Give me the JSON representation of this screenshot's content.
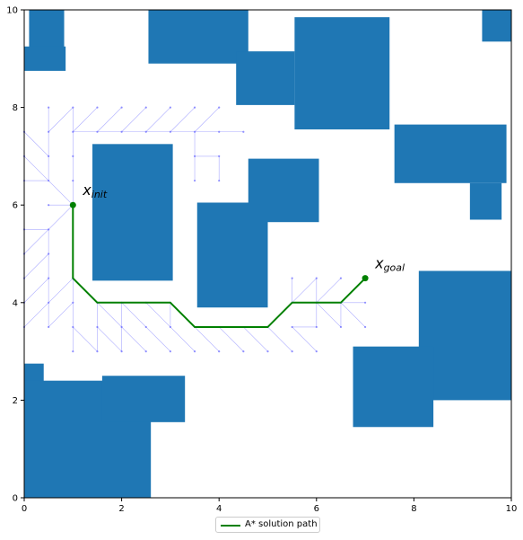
{
  "chart_data": {
    "type": "scatter",
    "xlim": [
      0,
      10
    ],
    "ylim": [
      0,
      10
    ],
    "x_ticks": [
      "0",
      "2",
      "4",
      "6",
      "8",
      "10"
    ],
    "y_ticks": [
      "0",
      "2",
      "4",
      "6",
      "8",
      "10"
    ],
    "grid": false,
    "legend_placement": "bottom-center",
    "colors": {
      "obstacle": "#1f77b4",
      "path": "#008000",
      "tree": "#6666ff"
    },
    "obstacles": [
      {
        "x0": 0.1,
        "y0": 9.2,
        "x1": 0.82,
        "y1": 10.0
      },
      {
        "x0": 0.0,
        "y0": 8.75,
        "x1": 0.85,
        "y1": 9.25
      },
      {
        "x0": 2.55,
        "y0": 8.9,
        "x1": 4.6,
        "y1": 10.0
      },
      {
        "x0": 4.35,
        "y0": 8.05,
        "x1": 5.55,
        "y1": 9.15
      },
      {
        "x0": 5.55,
        "y0": 7.55,
        "x1": 7.5,
        "y1": 9.85
      },
      {
        "x0": 7.6,
        "y0": 6.45,
        "x1": 9.9,
        "y1": 7.65
      },
      {
        "x0": 9.15,
        "y0": 5.7,
        "x1": 9.8,
        "y1": 6.45
      },
      {
        "x0": 9.4,
        "y0": 9.35,
        "x1": 10.0,
        "y1": 10.0
      },
      {
        "x0": 1.4,
        "y0": 4.45,
        "x1": 3.05,
        "y1": 7.25
      },
      {
        "x0": 4.6,
        "y0": 5.65,
        "x1": 6.05,
        "y1": 6.95
      },
      {
        "x0": 3.55,
        "y0": 3.9,
        "x1": 5.0,
        "y1": 6.05
      },
      {
        "x0": 8.1,
        "y0": 2.0,
        "x1": 10.0,
        "y1": 4.65
      },
      {
        "x0": 6.75,
        "y0": 1.45,
        "x1": 8.4,
        "y1": 3.1
      },
      {
        "x0": 0.0,
        "y0": 2.0,
        "x1": 0.4,
        "y1": 2.75
      },
      {
        "x0": 0.0,
        "y0": 0.0,
        "x1": 2.6,
        "y1": 2.4
      },
      {
        "x0": 1.6,
        "y0": 1.55,
        "x1": 3.3,
        "y1": 2.5
      }
    ],
    "tree_edges": [
      [
        1.0,
        6.0,
        0.5,
        5.5
      ],
      [
        1.0,
        6.0,
        0.5,
        6.0
      ],
      [
        1.0,
        6.0,
        0.5,
        6.5
      ],
      [
        1.0,
        6.0,
        1.0,
        6.5
      ],
      [
        0.5,
        5.5,
        0.0,
        5.0
      ],
      [
        0.5,
        5.5,
        0.0,
        5.5
      ],
      [
        0.5,
        5.5,
        0.5,
        5.0
      ],
      [
        0.5,
        6.5,
        0.0,
        7.0
      ],
      [
        0.5,
        6.5,
        0.0,
        6.5
      ],
      [
        0.5,
        6.5,
        0.5,
        7.0
      ],
      [
        0.5,
        5.0,
        0.0,
        4.5
      ],
      [
        0.5,
        5.0,
        0.5,
        4.5
      ],
      [
        0.5,
        4.5,
        0.0,
        4.0
      ],
      [
        0.5,
        4.5,
        0.5,
        4.0
      ],
      [
        0.5,
        4.0,
        0.0,
        3.5
      ],
      [
        0.5,
        4.0,
        0.5,
        3.5
      ],
      [
        0.5,
        7.0,
        0.0,
        7.5
      ],
      [
        0.5,
        7.0,
        0.5,
        7.5
      ],
      [
        0.5,
        7.5,
        0.5,
        8.0
      ],
      [
        0.5,
        7.5,
        1.0,
        8.0
      ],
      [
        1.0,
        6.5,
        1.0,
        7.0
      ],
      [
        1.0,
        7.0,
        1.0,
        7.5
      ],
      [
        1.0,
        7.5,
        1.0,
        8.0
      ],
      [
        1.0,
        7.5,
        1.5,
        8.0
      ],
      [
        1.0,
        7.5,
        1.5,
        7.5
      ],
      [
        1.5,
        7.5,
        2.0,
        8.0
      ],
      [
        1.5,
        7.5,
        2.0,
        7.5
      ],
      [
        2.0,
        7.5,
        2.5,
        8.0
      ],
      [
        2.0,
        7.5,
        2.5,
        7.5
      ],
      [
        2.5,
        7.5,
        3.0,
        8.0
      ],
      [
        2.5,
        7.5,
        3.0,
        7.5
      ],
      [
        3.0,
        7.5,
        3.5,
        8.0
      ],
      [
        3.0,
        7.5,
        3.5,
        7.5
      ],
      [
        3.5,
        7.5,
        4.0,
        8.0
      ],
      [
        3.5,
        7.5,
        4.0,
        7.5
      ],
      [
        3.5,
        7.5,
        3.5,
        7.0
      ],
      [
        4.0,
        7.5,
        4.5,
        7.5
      ],
      [
        3.5,
        7.0,
        3.5,
        6.5
      ],
      [
        3.5,
        7.0,
        4.0,
        7.0
      ],
      [
        4.0,
        7.0,
        4.0,
        6.5
      ],
      [
        1.0,
        4.5,
        0.5,
        4.0
      ],
      [
        1.0,
        4.5,
        1.0,
        4.0
      ],
      [
        1.0,
        4.0,
        1.0,
        3.5
      ],
      [
        1.0,
        4.0,
        0.5,
        3.5
      ],
      [
        1.0,
        3.5,
        1.0,
        3.0
      ],
      [
        1.0,
        3.5,
        1.5,
        3.0
      ],
      [
        1.5,
        4.0,
        1.5,
        3.5
      ],
      [
        1.5,
        3.5,
        1.5,
        3.0
      ],
      [
        1.5,
        3.5,
        2.0,
        3.0
      ],
      [
        2.0,
        4.0,
        2.0,
        3.5
      ],
      [
        2.0,
        3.5,
        2.0,
        3.0
      ],
      [
        2.0,
        3.5,
        2.5,
        3.0
      ],
      [
        1.5,
        4.0,
        2.0,
        3.5
      ],
      [
        2.0,
        4.0,
        2.5,
        3.5
      ],
      [
        2.5,
        4.0,
        3.0,
        3.5
      ],
      [
        2.5,
        3.5,
        3.0,
        3.0
      ],
      [
        3.0,
        4.0,
        3.0,
        3.5
      ],
      [
        3.0,
        3.5,
        3.5,
        3.0
      ],
      [
        3.5,
        3.5,
        4.0,
        3.0
      ],
      [
        4.0,
        3.5,
        4.5,
        3.0
      ],
      [
        4.5,
        3.5,
        5.0,
        3.0
      ],
      [
        5.0,
        3.5,
        5.5,
        3.0
      ],
      [
        5.5,
        3.5,
        6.0,
        3.0
      ],
      [
        5.5,
        3.5,
        6.0,
        3.5
      ],
      [
        5.5,
        4.0,
        5.5,
        4.5
      ],
      [
        5.5,
        4.0,
        6.0,
        4.5
      ],
      [
        6.0,
        4.0,
        6.0,
        4.5
      ],
      [
        6.0,
        4.0,
        6.5,
        4.5
      ],
      [
        6.0,
        4.0,
        6.0,
        3.5
      ],
      [
        6.0,
        4.0,
        6.5,
        3.5
      ],
      [
        6.5,
        4.0,
        7.0,
        4.0
      ],
      [
        6.5,
        4.0,
        7.0,
        3.5
      ],
      [
        6.5,
        4.0,
        6.5,
        3.5
      ]
    ],
    "path": [
      [
        1.0,
        6.0
      ],
      [
        1.0,
        4.5
      ],
      [
        1.5,
        4.0
      ],
      [
        3.0,
        4.0
      ],
      [
        3.5,
        3.5
      ],
      [
        5.0,
        3.5
      ],
      [
        5.5,
        4.0
      ],
      [
        6.5,
        4.0
      ],
      [
        7.0,
        4.5
      ]
    ],
    "start": {
      "x": 1.0,
      "y": 6.0
    },
    "goal": {
      "x": 7.0,
      "y": 4.5
    },
    "annotations": {
      "init_main": "x",
      "init_sub": "init",
      "goal_main": "x",
      "goal_sub": "goal"
    },
    "legend": {
      "path_label": "A* solution path"
    }
  }
}
